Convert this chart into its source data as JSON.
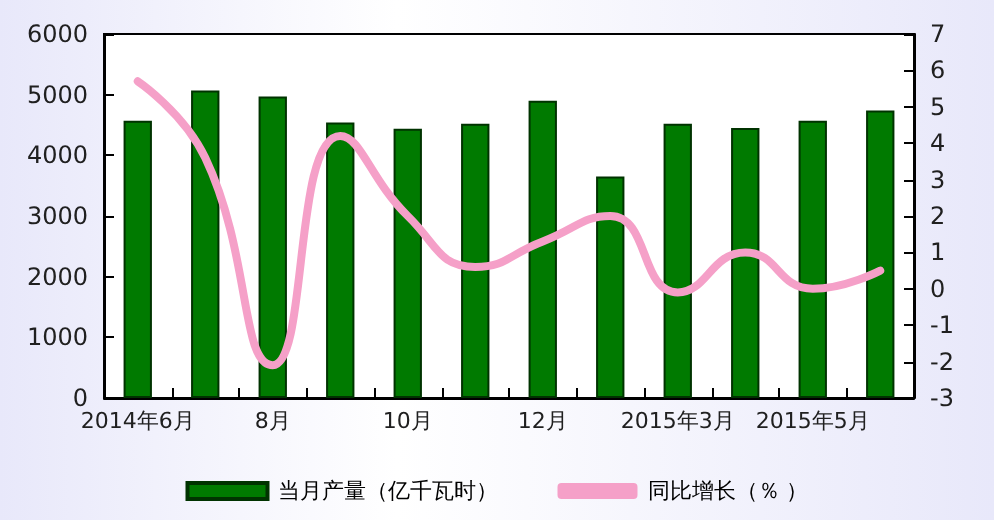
{
  "chart_data": {
    "type": "bar",
    "categories": [
      "2014年6月",
      null,
      "8月",
      null,
      "10月",
      null,
      "12月",
      null,
      "2015年3月",
      null,
      "2015年5月",
      null
    ],
    "series": [
      {
        "name": "当月产量（亿千瓦时）",
        "color": "#007a00",
        "values": [
          4570,
          5070,
          4970,
          4540,
          4440,
          4520,
          4900,
          3650,
          4520,
          4450,
          4570,
          4740
        ]
      },
      {
        "name": "同比增长（％ ）",
        "type": "line",
        "axis": "y2",
        "color": "#f5a0c8",
        "values": [
          5.7,
          3.6,
          -2.1,
          4.2,
          2.0,
          0.6,
          1.3,
          2.0,
          -0.1,
          1.0,
          0.0,
          0.5
        ]
      }
    ],
    "ylim": [
      0,
      6000
    ],
    "yticks": [
      0,
      1000,
      2000,
      3000,
      4000,
      5000,
      6000
    ],
    "y2lim": [
      -3,
      7
    ],
    "y2ticks": [
      -3,
      -2,
      -1,
      0,
      1,
      2,
      3,
      4,
      5,
      6,
      7
    ],
    "grid": false,
    "legend": "bottom",
    "marker": "none"
  }
}
